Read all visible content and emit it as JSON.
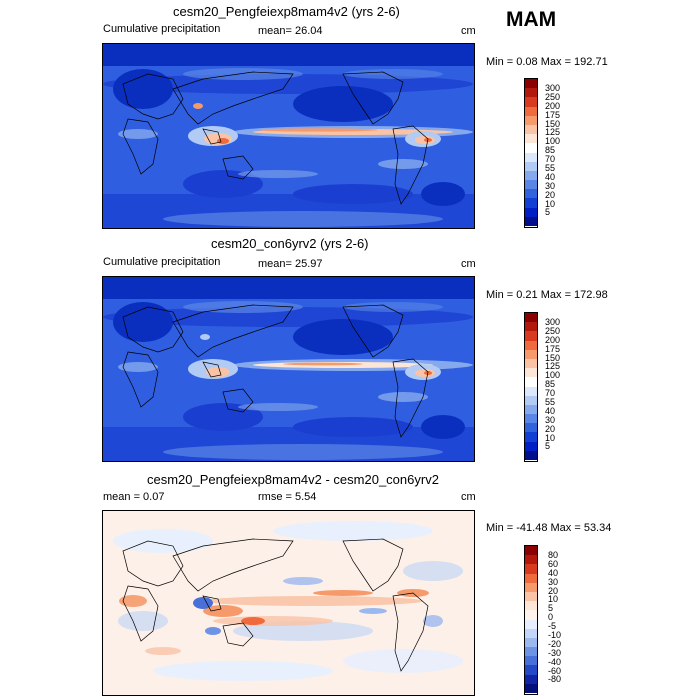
{
  "season": "MAM",
  "panels": [
    {
      "id": "top",
      "title": "cesm20_Pengfeiexp8mam4v2 (yrs 2-6)",
      "left_label": "Cumulative precipitation",
      "center_label": "mean=  26.04",
      "right_label": "cm",
      "minmax": "Min =   0.08 Max = 192.71",
      "colorbar_labels": [
        "300",
        "250",
        "200",
        "175",
        "150",
        "125",
        "100",
        "85",
        "70",
        "55",
        "40",
        "30",
        "20",
        "10",
        "5"
      ],
      "colorbar_colors": [
        "#8b0000",
        "#b2180c",
        "#d73a1e",
        "#ef6a3c",
        "#f69a6b",
        "#fac3a6",
        "#fde5d8",
        "#ffffff",
        "#dbe8fb",
        "#b2cbf4",
        "#86a9ed",
        "#5a86e6",
        "#3163dd",
        "#1240d4",
        "#0020c6",
        "#000f8e"
      ]
    },
    {
      "id": "middle",
      "title": "cesm20_con6yrv2 (yrs 2-6)",
      "left_label": "Cumulative precipitation",
      "center_label": "mean=  25.97",
      "right_label": "cm",
      "minmax": "Min =   0.21 Max = 172.98",
      "colorbar_labels": [
        "300",
        "250",
        "200",
        "175",
        "150",
        "125",
        "100",
        "85",
        "70",
        "55",
        "40",
        "30",
        "20",
        "10",
        "5"
      ],
      "colorbar_colors": [
        "#8b0000",
        "#b2180c",
        "#d73a1e",
        "#ef6a3c",
        "#f69a6b",
        "#fac3a6",
        "#fde5d8",
        "#ffffff",
        "#dbe8fb",
        "#b2cbf4",
        "#86a9ed",
        "#5a86e6",
        "#3163dd",
        "#1240d4",
        "#0020c6",
        "#000f8e"
      ]
    },
    {
      "id": "bottom",
      "title": "cesm20_Pengfeiexp8mam4v2 - cesm20_con6yrv2",
      "left_label": "mean =   0.07",
      "center_label": "rmse =   5.54",
      "right_label": "cm",
      "minmax": "Min = -41.48 Max =  53.34",
      "colorbar_labels": [
        "80",
        "60",
        "40",
        "30",
        "20",
        "10",
        "5",
        "0",
        "-5",
        "-10",
        "-20",
        "-30",
        "-40",
        "-60",
        "-80"
      ],
      "colorbar_colors": [
        "#8b0000",
        "#b2180c",
        "#d73a1e",
        "#ef6a3c",
        "#f69a6b",
        "#fac3a6",
        "#fde5d8",
        "#fff3ec",
        "#e6efff",
        "#c4d6f7",
        "#9bb8ef",
        "#6f93e4",
        "#4870d8",
        "#2449c6",
        "#1124a6",
        "#050f7a"
      ]
    }
  ]
}
